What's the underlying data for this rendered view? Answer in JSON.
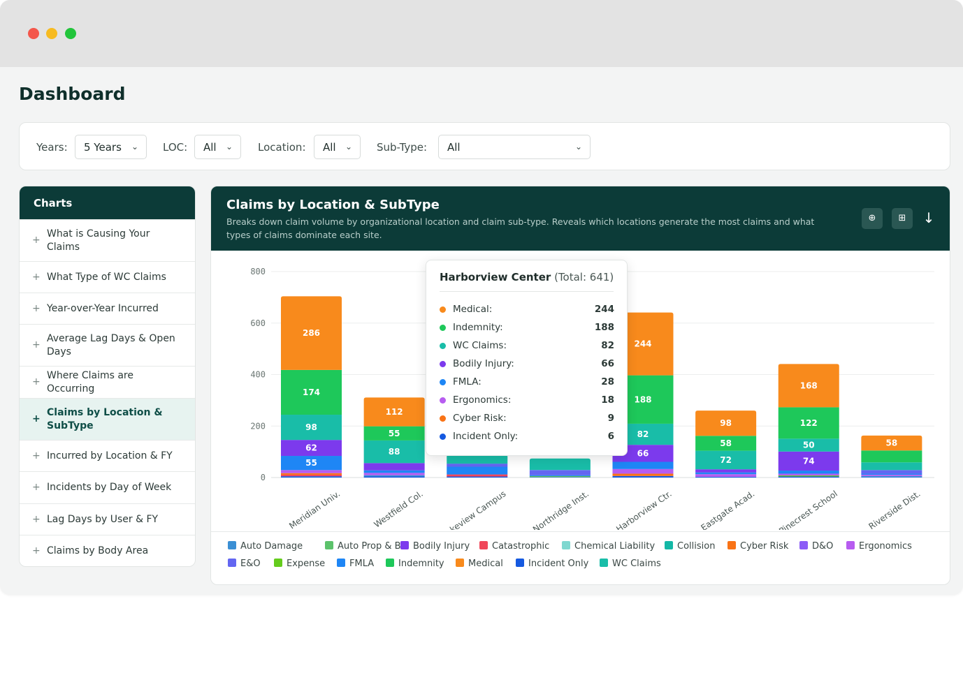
{
  "page_title": "Dashboard",
  "filters": {
    "years": {
      "label": "Years:",
      "value": "5 Years"
    },
    "loc": {
      "label": "LOC:",
      "value": "All"
    },
    "location": {
      "label": "Location:",
      "value": "All"
    },
    "subtype": {
      "label": "Sub-Type:",
      "value": "All"
    }
  },
  "sidebar": {
    "title": "Charts",
    "items": [
      {
        "label": "What is Causing Your Claims"
      },
      {
        "label": "What Type of WC Claims"
      },
      {
        "label": "Year-over-Year Incurred"
      },
      {
        "label": "Average Lag Days & Open Days"
      },
      {
        "label": "Where Claims are Occurring"
      },
      {
        "label": "Claims by Location & SubType",
        "active": true
      },
      {
        "label": "Incurred by Location & FY"
      },
      {
        "label": "Incidents by Day of Week"
      },
      {
        "label": "Lag Days by User & FY"
      },
      {
        "label": "Claims by Body Area"
      }
    ]
  },
  "panel": {
    "title": "Claims by Location & SubType",
    "description": "Breaks down claim volume by organizational location and claim sub-type. Reveals which locations generate the most claims and what types of claims dominate each site.",
    "icons": [
      "zoom-icon",
      "table-icon",
      "download-icon"
    ]
  },
  "colors": {
    "Auto Damage": "#3b8fd4",
    "Auto Prop & BI": "#5cc26b",
    "Bodily Injury": "#7c3aed",
    "Catastrophic": "#f0475a",
    "Chemical Liability": "#7fd8d0",
    "Collision": "#14b8a6",
    "Cyber Risk": "#f97316",
    "D&O": "#8b5cf6",
    "Ergonomics": "#b75cf0",
    "E&O": "#6366f1",
    "Expense": "#65cc1d",
    "FMLA": "#1e86f5",
    "Indemnity": "#1ec85a",
    "Medical": "#f88a1c",
    "Incident Only": "#1559e0",
    "WC Claims": "#19bda8"
  },
  "chart_data": {
    "type": "bar",
    "stacked": true,
    "title": "Claims by Location & SubType",
    "xlabel": "",
    "ylabel": "",
    "ylim": [
      0,
      800
    ],
    "yticks": [
      0,
      200,
      400,
      600,
      800
    ],
    "grid": true,
    "legend": "bottom",
    "categories": [
      "Meridian Univ.",
      "Westfield Col.",
      "Lakeview Campus",
      "Northridge Inst.",
      "Harborview Ctr.",
      "Eastgate Acad.",
      "Pinecrest School",
      "Riverside Dist."
    ],
    "series": [
      {
        "name": "Incident Only",
        "values": [
          5,
          4,
          4,
          2,
          6,
          3,
          4,
          2
        ]
      },
      {
        "name": "Auto Damage",
        "values": [
          0,
          5,
          0,
          0,
          0,
          0,
          0,
          4
        ]
      },
      {
        "name": "Expense",
        "values": [
          0,
          0,
          0,
          3,
          0,
          0,
          4,
          0
        ]
      },
      {
        "name": "Catastrophic",
        "values": [
          6,
          0,
          8,
          0,
          0,
          0,
          0,
          0
        ]
      },
      {
        "name": "Cyber Risk",
        "values": [
          6,
          0,
          0,
          0,
          9,
          0,
          0,
          0
        ]
      },
      {
        "name": "Ergonomics",
        "values": [
          12,
          9,
          0,
          0,
          18,
          10,
          7,
          5
        ]
      },
      {
        "name": "FMLA",
        "values": [
          55,
          10,
          30,
          4,
          28,
          7,
          12,
          4
        ]
      },
      {
        "name": "E&O",
        "values": [
          0,
          0,
          12,
          20,
          0,
          0,
          0,
          14
        ]
      },
      {
        "name": "Bodily Injury",
        "values": [
          62,
          28,
          0,
          0,
          66,
          12,
          74,
          0
        ]
      },
      {
        "name": "WC Claims",
        "values": [
          98,
          88,
          35,
          45,
          82,
          72,
          50,
          30
        ]
      },
      {
        "name": "Indemnity",
        "values": [
          174,
          55,
          0,
          0,
          188,
          58,
          122,
          46
        ]
      },
      {
        "name": "Medical",
        "values": [
          286,
          112,
          0,
          0,
          244,
          98,
          168,
          58
        ]
      }
    ],
    "data_labels": {
      "min_value": 50
    }
  },
  "legend": [
    "Auto Damage",
    "Auto Prop & BI",
    "Bodily Injury",
    "Catastrophic",
    "Chemical Liability",
    "Collision",
    "Cyber Risk",
    "D&O",
    "Ergonomics",
    "E&O",
    "Expense",
    "FMLA",
    "Indemnity",
    "Medical",
    "Incident Only",
    "WC Claims"
  ],
  "tooltip": {
    "title": "Harborview Center",
    "subtitle": "(Total: 641)",
    "rows": [
      {
        "label": "Medical:",
        "value": "244",
        "color": "#f88a1c"
      },
      {
        "label": "Indemnity:",
        "value": "188",
        "color": "#1ec85a"
      },
      {
        "label": "WC Claims:",
        "value": "82",
        "color": "#19bda8"
      },
      {
        "label": "Bodily Injury:",
        "value": "66",
        "color": "#7c3aed"
      },
      {
        "label": "FMLA:",
        "value": "28",
        "color": "#1e86f5"
      },
      {
        "label": "Ergonomics:",
        "value": "18",
        "color": "#b75cf0"
      },
      {
        "label": "Cyber Risk:",
        "value": "9",
        "color": "#f97316"
      },
      {
        "label": "Incident Only:",
        "value": "6",
        "color": "#1559e0"
      }
    ]
  }
}
